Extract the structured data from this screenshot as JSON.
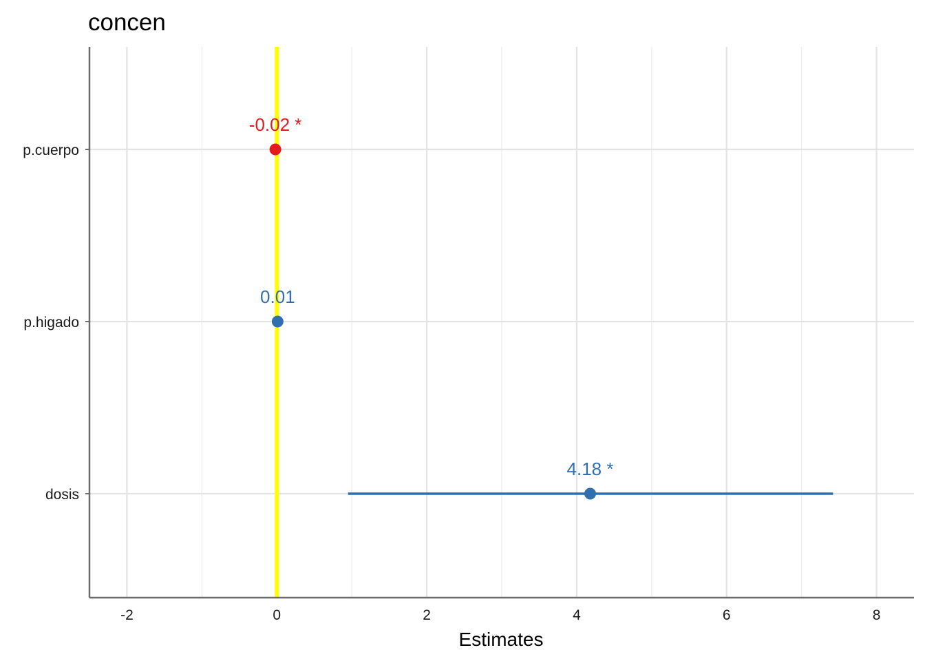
{
  "chart_data": {
    "type": "forest",
    "title": "concen",
    "xlabel": "Estimates",
    "ylabel": "",
    "xlim": [
      -2.5,
      8.5
    ],
    "x_ticks": [
      -2,
      0,
      2,
      4,
      6,
      8
    ],
    "x_tick_labels": [
      "-2",
      "0",
      "2",
      "4",
      "6",
      "8"
    ],
    "reference_line": {
      "x": 0,
      "color": "#ffff00"
    },
    "grid": true,
    "terms": [
      {
        "term": "p.cuerpo",
        "estimate": -0.02,
        "label": "-0.02 *",
        "conf_low": -0.02,
        "conf_high": -0.02,
        "color": "#e41a1c",
        "color_name": "red"
      },
      {
        "term": "p.higado",
        "estimate": 0.01,
        "label": "0.01",
        "conf_low": 0.01,
        "conf_high": 0.01,
        "color": "#2f6fb0",
        "color_name": "blue"
      },
      {
        "term": "dosis",
        "estimate": 4.18,
        "label": "4.18 *",
        "conf_low": 0.95,
        "conf_high": 7.42,
        "color": "#2f6fb0",
        "color_name": "blue"
      }
    ]
  }
}
